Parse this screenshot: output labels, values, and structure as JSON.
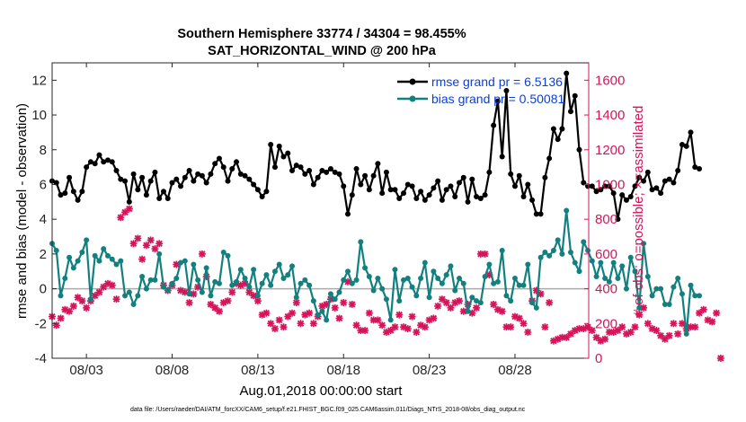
{
  "chart_data": {
    "type": "line",
    "title": "Southern Hemisphere 33774 / 34304 = 98.455%",
    "subtitle": "SAT_HORIZONTAL_WIND @ 200 hPa",
    "xlabel": "Aug.01,2018 00:00:00 start",
    "ylabel": "rmse and bias (model - observation)",
    "y2label": "# of obs: o=possible; ×=assimilated",
    "footnote": "data file: /Users/raeder/DAI/ATM_forcXX/CAM6_setup/f.e21.FHIST_BGC.f09_025.CAM6assim.011/Diags_NTrS_2018-08/obs_diag_output.nc",
    "xlim": [
      1,
      32.3
    ],
    "ylim": [
      -4,
      13
    ],
    "y2lim": [
      0,
      1700
    ],
    "xticks": [
      3,
      8,
      13,
      18,
      23,
      28
    ],
    "xtick_labels": [
      "08/03",
      "08/08",
      "08/13",
      "08/18",
      "08/23",
      "08/28"
    ],
    "yticks": [
      -4,
      -2,
      0,
      2,
      4,
      6,
      8,
      10,
      12
    ],
    "yticks_right": [
      0,
      200,
      400,
      600,
      800,
      1000,
      1200,
      1400,
      1600
    ],
    "colors": {
      "rmse": "#000000",
      "bias": "#138080",
      "obs": "#d6145a",
      "zero": "#aaaaaa",
      "legend_text": "#0b3fd8"
    },
    "series": [
      {
        "name": "rmse grand pr = 6.5136",
        "x0": 1.0,
        "dx": 0.25,
        "axis": "left",
        "values": [
          6.2,
          6.1,
          5.4,
          5.5,
          6.4,
          5.6,
          5.1,
          5.6,
          7.0,
          7.3,
          7.2,
          7.7,
          7.3,
          7.4,
          7.3,
          6.8,
          6.3,
          6.2,
          5.0,
          6.6,
          5.7,
          6.4,
          5.4,
          6.2,
          6.7,
          5.2,
          5.6,
          5.2,
          6.1,
          6.3,
          5.9,
          6.4,
          6.8,
          6.2,
          6.6,
          6.5,
          6.1,
          6.6,
          7.2,
          7.5,
          7.0,
          6.2,
          6.9,
          7.3,
          6.6,
          6.5,
          6.3,
          6.0,
          5.7,
          5.3,
          5.6,
          8.3,
          7.0,
          8.2,
          7.6,
          7.8,
          6.8,
          7.1,
          7.0,
          6.6,
          6.8,
          6.0,
          6.4,
          6.8,
          6.7,
          6.9,
          6.7,
          6.6,
          5.9,
          4.3,
          5.4,
          6.9,
          6.0,
          6.5,
          5.7,
          6.5,
          7.2,
          5.5,
          6.7,
          5.7,
          5.7,
          5.2,
          5.5,
          6.0,
          5.9,
          5.2,
          5.6,
          5.1,
          5.4,
          5.8,
          6.2,
          5.1,
          5.7,
          5.9,
          5.3,
          6.1,
          6.4,
          5.0,
          6.3,
          5.3,
          5.2,
          5.4,
          6.7,
          9.4,
          10.8,
          7.6,
          11.4,
          6.6,
          5.9,
          6.5,
          5.3,
          6.0,
          5.1,
          4.3,
          4.3,
          6.4,
          7.5,
          9.2,
          8.6,
          9.2,
          12.4,
          10.2,
          11.1,
          8.0,
          6.1,
          5.9,
          5.9,
          5.6,
          5.7,
          5.9,
          5.9,
          5.5,
          4.0,
          5.4,
          5.1,
          5.3,
          5.9,
          6.4,
          6.2,
          6.7,
          5.7,
          5.8,
          5.5,
          6.2,
          6.3,
          6.1,
          6.8,
          8.3,
          8.2,
          9.0,
          7.0,
          6.9
        ]
      },
      {
        "name": "bias grand pr = 0.50081",
        "x0": 1.0,
        "dx": 0.25,
        "axis": "left",
        "values": [
          2.6,
          2.2,
          -0.4,
          0.6,
          1.8,
          1.2,
          1.6,
          2.1,
          2.8,
          -0.6,
          1.9,
          1.6,
          2.3,
          1.9,
          1.7,
          1.4,
          1.6,
          -0.4,
          -0.2,
          -0.9,
          -0.4,
          0.7,
          0.0,
          0.5,
          0.5,
          2.0,
          0.1,
          -0.1,
          0.3,
          0.6,
          1.5,
          1.6,
          -0.3,
          1.4,
          0.5,
          -0.2,
          1.2,
          -0.4,
          0.4,
          0.3,
          2.1,
          1.9,
          0.2,
          0.4,
          1.1,
          0.6,
          0.1,
          1.1,
          -0.4,
          0.3,
          0.8,
          0.2,
          1.0,
          1.4,
          0.6,
          0.8,
          1.3,
          -0.5,
          0.3,
          0.5,
          0.2,
          -0.7,
          -1.5,
          -1.3,
          -1.8,
          -0.3,
          -0.6,
          -0.2,
          0.5,
          1.0,
          0.3,
          0.5,
          2.7,
          1.2,
          0.7,
          -0.1,
          0.6,
          0.0,
          -0.6,
          -1.8,
          1.1,
          -0.7,
          0.5,
          0.6,
          0.1,
          -0.4,
          0.6,
          1.5,
          -0.5,
          1.0,
          0.6,
          0.3,
          0.8,
          1.3,
          -0.1,
          0.6,
          0.3,
          -1.3,
          -0.5,
          -0.7,
          -0.8,
          0.7,
          1.4,
          0.3,
          0.4,
          2.2,
          -0.4,
          -0.7,
          0.6,
          0.2,
          0.2,
          1.4,
          -0.8,
          -1.1,
          1.8,
          2.1,
          1.9,
          2.2,
          2.8,
          2.0,
          4.5,
          2.1,
          1.5,
          1.0,
          2.7,
          2.2,
          1.6,
          0.7,
          1.5,
          0.6,
          0.4,
          1.5,
          0.6,
          1.3,
          0.0,
          1.8,
          1.0,
          -1.1,
          2.6,
          0.7,
          -0.4,
          0.0,
          0.0,
          -0.9,
          -0.9,
          0.1,
          0.6,
          -0.3,
          -2.6,
          0.2,
          -0.4,
          -0.4
        ]
      },
      {
        "name": "# of obs assimilated",
        "x0": 1.0,
        "dx": 0.25,
        "axis": "right",
        "values": [
          240,
          190,
          230,
          280,
          270,
          300,
          350,
          330,
          290,
          330,
          360,
          380,
          410,
          430,
          420,
          340,
          810,
          840,
          860,
          660,
          690,
          570,
          650,
          680,
          630,
          660,
          420,
          390,
          420,
          540,
          390,
          380,
          320,
          370,
          410,
          600,
          470,
          310,
          290,
          270,
          320,
          330,
          380,
          430,
          420,
          430,
          380,
          360,
          330,
          250,
          260,
          200,
          170,
          220,
          180,
          240,
          260,
          320,
          200,
          250,
          260,
          200,
          240,
          300,
          310,
          340,
          290,
          230,
          320,
          440,
          310,
          190,
          160,
          160,
          260,
          220,
          220,
          190,
          150,
          160,
          180,
          250,
          180,
          170,
          240,
          150,
          190,
          180,
          220,
          230,
          300,
          340,
          320,
          290,
          320,
          330,
          270,
          310,
          260,
          290,
          600,
          600,
          480,
          310,
          280,
          270,
          180,
          180,
          240,
          230,
          200,
          150,
          330,
          390,
          370,
          180,
          320,
          100,
          110,
          120,
          120,
          140,
          160,
          170,
          170,
          180,
          160,
          120,
          100,
          110,
          150,
          150,
          160,
          180,
          140,
          150,
          180,
          250,
          290,
          200,
          170,
          160,
          130,
          110,
          130,
          200,
          140,
          200,
          170,
          180,
          180,
          260,
          280,
          220,
          210,
          260,
          0
        ]
      }
    ]
  }
}
